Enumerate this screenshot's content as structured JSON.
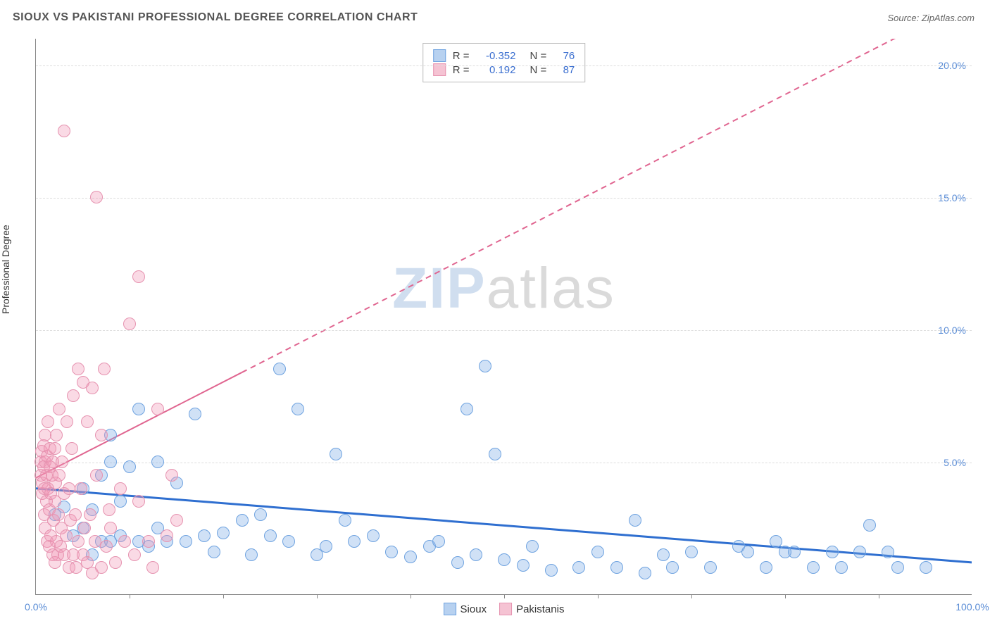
{
  "title": "SIOUX VS PAKISTANI PROFESSIONAL DEGREE CORRELATION CHART",
  "source": "Source: ZipAtlas.com",
  "ylabel": "Professional Degree",
  "watermark": {
    "zip": "ZIP",
    "atlas": "atlas"
  },
  "chart": {
    "type": "scatter",
    "background_color": "#ffffff",
    "grid_color": "#dddddd",
    "axis_color": "#888888",
    "xlim": [
      0,
      100
    ],
    "ylim": [
      0,
      21
    ],
    "xticks_minor_step": 10,
    "xticks_labels": [
      {
        "x": 0,
        "label": "0.0%"
      },
      {
        "x": 100,
        "label": "100.0%"
      }
    ],
    "yticks": [
      {
        "y": 5,
        "label": "5.0%"
      },
      {
        "y": 10,
        "label": "10.0%"
      },
      {
        "y": 15,
        "label": "15.0%"
      },
      {
        "y": 20,
        "label": "20.0%"
      }
    ],
    "marker_radius": 9,
    "marker_stroke_width": 1.5,
    "series": [
      {
        "name": "Sioux",
        "fill": "rgba(120,170,230,0.35)",
        "stroke": "#6fa3e0",
        "swatch_fill": "#b7d1f0",
        "swatch_border": "#6fa3e0",
        "R": "-0.352",
        "N": "76",
        "trend": {
          "color": "#2f6fd0",
          "width": 3,
          "dash_from_x": null,
          "y_at_x0": 4.0,
          "y_at_x100": 1.2
        },
        "points": [
          [
            2,
            3.0
          ],
          [
            3,
            3.3
          ],
          [
            4,
            2.2
          ],
          [
            5,
            2.5
          ],
          [
            5,
            4.0
          ],
          [
            6,
            1.5
          ],
          [
            6,
            3.2
          ],
          [
            7,
            2.0
          ],
          [
            7,
            4.5
          ],
          [
            8,
            2.0
          ],
          [
            8,
            5.0
          ],
          [
            8,
            6.0
          ],
          [
            9,
            2.2
          ],
          [
            9,
            3.5
          ],
          [
            10,
            4.8
          ],
          [
            11,
            2.0
          ],
          [
            11,
            7.0
          ],
          [
            12,
            1.8
          ],
          [
            13,
            2.5
          ],
          [
            13,
            5.0
          ],
          [
            14,
            2.0
          ],
          [
            15,
            4.2
          ],
          [
            16,
            2.0
          ],
          [
            17,
            6.8
          ],
          [
            18,
            2.2
          ],
          [
            19,
            1.6
          ],
          [
            20,
            2.3
          ],
          [
            22,
            2.8
          ],
          [
            23,
            1.5
          ],
          [
            24,
            3.0
          ],
          [
            25,
            2.2
          ],
          [
            26,
            8.5
          ],
          [
            27,
            2.0
          ],
          [
            28,
            7.0
          ],
          [
            30,
            1.5
          ],
          [
            31,
            1.8
          ],
          [
            32,
            5.3
          ],
          [
            33,
            2.8
          ],
          [
            34,
            2.0
          ],
          [
            36,
            2.2
          ],
          [
            38,
            1.6
          ],
          [
            40,
            1.4
          ],
          [
            42,
            1.8
          ],
          [
            43,
            2.0
          ],
          [
            45,
            1.2
          ],
          [
            46,
            7.0
          ],
          [
            47,
            1.5
          ],
          [
            48,
            8.6
          ],
          [
            49,
            5.3
          ],
          [
            50,
            1.3
          ],
          [
            52,
            1.1
          ],
          [
            53,
            1.8
          ],
          [
            55,
            0.9
          ],
          [
            58,
            1.0
          ],
          [
            60,
            1.6
          ],
          [
            62,
            1.0
          ],
          [
            64,
            2.8
          ],
          [
            65,
            0.8
          ],
          [
            67,
            1.5
          ],
          [
            68,
            1.0
          ],
          [
            70,
            1.6
          ],
          [
            72,
            1.0
          ],
          [
            75,
            1.8
          ],
          [
            76,
            1.6
          ],
          [
            78,
            1.0
          ],
          [
            79,
            2.0
          ],
          [
            80,
            1.6
          ],
          [
            81,
            1.6
          ],
          [
            83,
            1.0
          ],
          [
            85,
            1.6
          ],
          [
            86,
            1.0
          ],
          [
            88,
            1.6
          ],
          [
            89,
            2.6
          ],
          [
            91,
            1.6
          ],
          [
            92,
            1.0
          ],
          [
            95,
            1.0
          ]
        ]
      },
      {
        "name": "Pakistanis",
        "fill": "rgba(240,150,180,0.35)",
        "stroke": "#e693b0",
        "swatch_fill": "#f5c3d3",
        "swatch_border": "#e693b0",
        "R": "0.192",
        "N": "87",
        "trend": {
          "color": "#e06590",
          "width": 2,
          "dash_from_x": 22,
          "y_at_x0": 4.4,
          "y_at_x100": 22.5
        },
        "points": [
          [
            0.5,
            4.5
          ],
          [
            0.5,
            5.0
          ],
          [
            0.6,
            5.4
          ],
          [
            0.7,
            3.8
          ],
          [
            0.7,
            4.2
          ],
          [
            0.8,
            4.8
          ],
          [
            0.8,
            5.6
          ],
          [
            0.9,
            3.0
          ],
          [
            0.9,
            4.0
          ],
          [
            1.0,
            2.5
          ],
          [
            1.0,
            5.0
          ],
          [
            1.0,
            6.0
          ],
          [
            1.1,
            3.5
          ],
          [
            1.1,
            4.5
          ],
          [
            1.2,
            2.0
          ],
          [
            1.2,
            5.2
          ],
          [
            1.3,
            4.0
          ],
          [
            1.3,
            6.5
          ],
          [
            1.4,
            1.8
          ],
          [
            1.4,
            3.2
          ],
          [
            1.5,
            4.8
          ],
          [
            1.5,
            5.5
          ],
          [
            1.6,
            2.2
          ],
          [
            1.6,
            3.8
          ],
          [
            1.7,
            4.5
          ],
          [
            1.8,
            1.5
          ],
          [
            1.8,
            5.0
          ],
          [
            1.9,
            2.8
          ],
          [
            2.0,
            1.2
          ],
          [
            2.0,
            3.5
          ],
          [
            2.0,
            5.5
          ],
          [
            2.1,
            4.2
          ],
          [
            2.2,
            2.0
          ],
          [
            2.2,
            6.0
          ],
          [
            2.3,
            1.5
          ],
          [
            2.4,
            3.0
          ],
          [
            2.5,
            4.5
          ],
          [
            2.5,
            7.0
          ],
          [
            2.6,
            1.8
          ],
          [
            2.7,
            2.5
          ],
          [
            2.8,
            5.0
          ],
          [
            3.0,
            1.5
          ],
          [
            3.0,
            3.8
          ],
          [
            3.0,
            17.5
          ],
          [
            3.2,
            2.2
          ],
          [
            3.3,
            6.5
          ],
          [
            3.5,
            1.0
          ],
          [
            3.5,
            4.0
          ],
          [
            3.7,
            2.8
          ],
          [
            3.8,
            5.5
          ],
          [
            4.0,
            1.5
          ],
          [
            4.0,
            7.5
          ],
          [
            4.2,
            3.0
          ],
          [
            4.3,
            1.0
          ],
          [
            4.5,
            2.0
          ],
          [
            4.5,
            8.5
          ],
          [
            4.8,
            4.0
          ],
          [
            5.0,
            1.5
          ],
          [
            5.0,
            8.0
          ],
          [
            5.2,
            2.5
          ],
          [
            5.5,
            1.2
          ],
          [
            5.5,
            6.5
          ],
          [
            5.8,
            3.0
          ],
          [
            6.0,
            0.8
          ],
          [
            6.0,
            7.8
          ],
          [
            6.3,
            2.0
          ],
          [
            6.5,
            4.5
          ],
          [
            6.5,
            15.0
          ],
          [
            7.0,
            1.0
          ],
          [
            7.0,
            6.0
          ],
          [
            7.3,
            8.5
          ],
          [
            7.5,
            1.8
          ],
          [
            7.8,
            3.2
          ],
          [
            8.0,
            2.5
          ],
          [
            8.5,
            1.2
          ],
          [
            9.0,
            4.0
          ],
          [
            9.5,
            2.0
          ],
          [
            10.0,
            10.2
          ],
          [
            10.5,
            1.5
          ],
          [
            11.0,
            3.5
          ],
          [
            11.0,
            12.0
          ],
          [
            12.0,
            2.0
          ],
          [
            12.5,
            1.0
          ],
          [
            13.0,
            7.0
          ],
          [
            14.0,
            2.2
          ],
          [
            14.5,
            4.5
          ],
          [
            15.0,
            2.8
          ]
        ]
      }
    ]
  },
  "legend_top_labels": {
    "R": "R =",
    "N": "N ="
  },
  "legend_bottom": [
    {
      "series_index": 0
    },
    {
      "series_index": 1
    }
  ]
}
